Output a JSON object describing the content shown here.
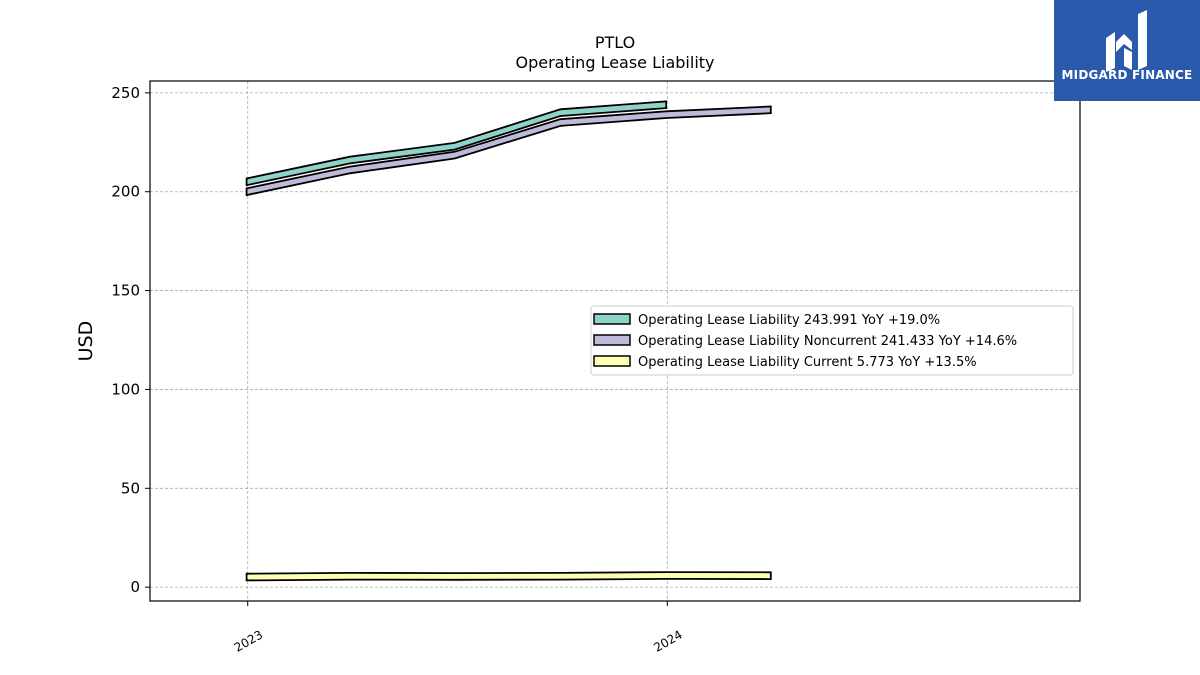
{
  "chart_data": {
    "type": "area",
    "title": "PTLO",
    "subtitle": "Operating Lease Liability",
    "xlabel": "",
    "ylabel": "USD",
    "x_ticks": [
      "2023",
      "2024"
    ],
    "y_ticks": [
      0,
      50,
      100,
      150,
      200,
      250
    ],
    "ylim": [
      -7,
      256
    ],
    "xlim": [
      "2022-10-08",
      "2024-12-25"
    ],
    "grid": true,
    "legend_position": "center-right",
    "series": [
      {
        "name": "Operating Lease Liability",
        "legend_label": "Operating Lease Liability  243.991 YoY +19.0%",
        "color": "#8dd3c7",
        "x": [
          "2022-12-31",
          "2023-03-31",
          "2023-06-30",
          "2023-09-30",
          "2023-12-31"
        ],
        "values": [
          205,
          216,
          223,
          240,
          244
        ]
      },
      {
        "name": "Operating Lease Liability Noncurrent",
        "legend_label": "Operating Lease Liability Noncurrent  241.433 YoY +14.6%",
        "color": "#bebada",
        "x": [
          "2022-12-31",
          "2023-03-31",
          "2023-06-30",
          "2023-09-30",
          "2023-12-31",
          "2024-03-31"
        ],
        "values": [
          200,
          211,
          218.5,
          235,
          239,
          241.4
        ]
      },
      {
        "name": "Operating Lease Liability Current",
        "legend_label": "Operating Lease Liability Current  5.773 YoY +13.5%",
        "color": "#ffffb3",
        "x": [
          "2022-12-31",
          "2023-03-31",
          "2023-06-30",
          "2023-09-30",
          "2023-12-31",
          "2024-03-31"
        ],
        "values": [
          5.1,
          5.5,
          5.4,
          5.5,
          5.9,
          5.8
        ]
      }
    ]
  },
  "logo": {
    "text": "MIDGARD FINANCE"
  }
}
